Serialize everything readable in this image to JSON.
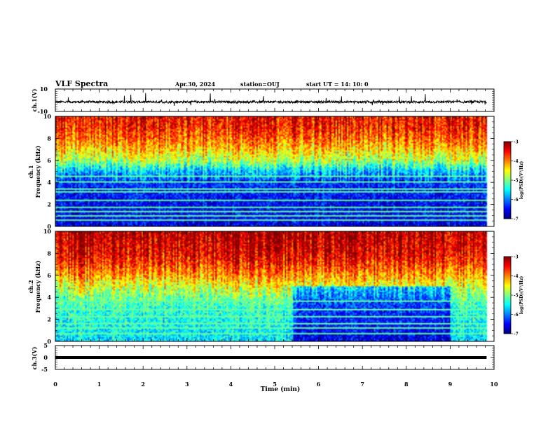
{
  "header": {
    "title": "VLF Spectra",
    "date": "Apr.30, 2024",
    "station": "station=OUJ",
    "start": "start UT =  14: 10: 0"
  },
  "colors": {
    "colormap": [
      "#00007f",
      "#0000ff",
      "#007fff",
      "#00ffff",
      "#7fff7f",
      "#ffff00",
      "#ff7f00",
      "#ff0000",
      "#7f0000"
    ],
    "trace": "#000000",
    "axes": "#000000"
  },
  "chart_data": [
    {
      "type": "line",
      "name": "ch1-waveform",
      "ylabel": "ch.1(V)",
      "ylim": [
        -10,
        10
      ],
      "yticks": [
        10,
        -10
      ],
      "xlim": [
        0,
        10
      ],
      "baseline": -1.5,
      "trace": "noisy waveform around -1.5 V with spikes up to about 9 V and down to about -8 V"
    },
    {
      "type": "heatmap",
      "name": "ch1-spectrogram",
      "ylabel": "ch.1\nFrequency (kHz)",
      "ylim": [
        0,
        10
      ],
      "yticks": [
        "0",
        "2",
        "4",
        "6",
        "8",
        "10"
      ],
      "xlim": [
        0,
        10
      ],
      "x_end": 9.83,
      "colorbar": {
        "label": "log(PSD)(V²/Hz)",
        "range": [
          -7,
          -3
        ],
        "ticks": [
          "-3",
          "-4",
          "-5",
          "-6",
          "-7"
        ]
      },
      "profile": [
        {
          "f": 0,
          "v": -6.6
        },
        {
          "f": 1,
          "v": -6.5
        },
        {
          "f": 2,
          "v": -6.5
        },
        {
          "f": 3,
          "v": -6.4
        },
        {
          "f": 4,
          "v": -6.3
        },
        {
          "f": 5,
          "v": -5.7
        },
        {
          "f": 6,
          "v": -4.8
        },
        {
          "f": 7,
          "v": -4.3
        },
        {
          "f": 8,
          "v": -3.9
        },
        {
          "f": 9,
          "v": -3.6
        },
        {
          "f": 10,
          "v": -3.5
        }
      ],
      "lines_khz": [
        0.5,
        0.9,
        1.3,
        1.7,
        2.3,
        3.1,
        3.4,
        4.0,
        4.6
      ]
    },
    {
      "type": "heatmap",
      "name": "ch2-spectrogram",
      "ylabel": "ch.2\nFrequency (kHz)",
      "ylim": [
        0,
        10
      ],
      "yticks": [
        "0",
        "2",
        "4",
        "6",
        "8",
        "10"
      ],
      "xlim": [
        0,
        10
      ],
      "x_end": 9.83,
      "colorbar": {
        "label": "log(PSD)(V²/Hz)",
        "range": [
          -7,
          -3
        ],
        "ticks": [
          "-3",
          "-4",
          "-5",
          "-6",
          "-7"
        ]
      },
      "profile": [
        {
          "f": 0,
          "v": -5.6
        },
        {
          "f": 1,
          "v": -5.5
        },
        {
          "f": 2,
          "v": -5.4
        },
        {
          "f": 3,
          "v": -5.3
        },
        {
          "f": 4,
          "v": -5.0
        },
        {
          "f": 5,
          "v": -4.6
        },
        {
          "f": 6,
          "v": -4.1
        },
        {
          "f": 7,
          "v": -3.7
        },
        {
          "f": 8,
          "v": -3.4
        },
        {
          "f": 9,
          "v": -3.3
        },
        {
          "f": 10,
          "v": -3.2
        }
      ],
      "quiet_window_min": [
        5.4,
        9.0
      ],
      "lines_khz": [
        0.6,
        1.2,
        1.5,
        2.2,
        2.8,
        3.6
      ]
    },
    {
      "type": "line",
      "name": "ch3-waveform",
      "ylabel": "ch.3(V)",
      "ylim": [
        -5,
        5
      ],
      "yticks": [
        "5",
        "0",
        "-5"
      ],
      "xlim": [
        0,
        10
      ],
      "baseline": 0,
      "xlabel": "Time (min)",
      "xticks": [
        "0",
        "1",
        "2",
        "3",
        "4",
        "5",
        "6",
        "7",
        "8",
        "9",
        "10"
      ],
      "trace": "flat thick line at 0 V"
    }
  ]
}
